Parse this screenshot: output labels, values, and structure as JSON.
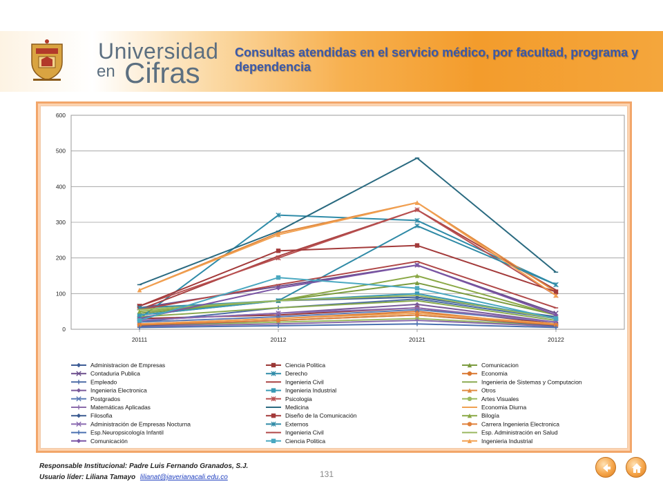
{
  "header": {
    "brand_line1": "Universidad",
    "brand_en": "en",
    "brand_line2": "Cifras",
    "title": "Consultas atendidas en el servicio médico, por facultad, programa y dependencia"
  },
  "colors": {
    "banner_accent": "#f39c2c",
    "title_color": "#3a58a8",
    "brand_color": "#5c6f80",
    "frame_border": "#f2a66a"
  },
  "footer": {
    "responsible": "Responsable Institucional: Padre Luis Fernando Granados, S.J.",
    "leader_label": "Usuario líder: Liliana Tamayo",
    "leader_email": "lilianat@javerianacali.edu.co",
    "page_number": "131"
  },
  "icons": {
    "back": "back-arrow-icon",
    "home": "home-icon"
  },
  "chart_data": {
    "type": "line",
    "title": "",
    "xlabel": "",
    "ylabel": "",
    "categories": [
      "20111",
      "20112",
      "20121",
      "20122"
    ],
    "ylim": [
      0,
      600
    ],
    "yticks": [
      0,
      100,
      200,
      300,
      400,
      500,
      600
    ],
    "grid": true,
    "legend_position": "bottom",
    "series": [
      {
        "name": "Administracion de Empresas",
        "color": "#3d5c95",
        "marker": "diamond",
        "values": [
          40,
          80,
          90,
          35
        ]
      },
      {
        "name": "Ciencia Politica",
        "color": "#9a3735",
        "marker": "square",
        "values": [
          30,
          40,
          60,
          15
        ]
      },
      {
        "name": "Comunicacion",
        "color": "#7a9a3e",
        "marker": "triangle",
        "values": [
          45,
          80,
          130,
          40
        ]
      },
      {
        "name": "Contaduria Publica",
        "color": "#6b4d8c",
        "marker": "x",
        "values": [
          60,
          120,
          180,
          45
        ]
      },
      {
        "name": "Derecho",
        "color": "#2e8ba8",
        "marker": "asterisk",
        "values": [
          30,
          320,
          305,
          125
        ]
      },
      {
        "name": "Economia",
        "color": "#d9762e",
        "marker": "circle",
        "values": [
          15,
          30,
          50,
          10
        ]
      },
      {
        "name": "Empleado",
        "color": "#4a6aa5",
        "marker": "plus",
        "values": [
          20,
          60,
          85,
          30
        ]
      },
      {
        "name": "Ingenieria Civil",
        "color": "#a84040",
        "marker": "dash",
        "values": [
          55,
          205,
          335,
          110
        ]
      },
      {
        "name": "Ingenieria de Sistemas y Computacion",
        "color": "#8aaa50",
        "marker": "dash",
        "values": [
          35,
          60,
          80,
          25
        ]
      },
      {
        "name": "Ingenieria Electronica",
        "color": "#7a5a9a",
        "marker": "diamond",
        "values": [
          25,
          45,
          70,
          20
        ]
      },
      {
        "name": "Ingenieria Industrial",
        "color": "#3a9ab5",
        "marker": "square",
        "values": [
          40,
          80,
          100,
          30
        ]
      },
      {
        "name": "Otros",
        "color": "#e08a40",
        "marker": "triangle",
        "values": [
          110,
          270,
          355,
          105
        ]
      },
      {
        "name": "Postgrados",
        "color": "#5a7ab5",
        "marker": "x",
        "values": [
          20,
          35,
          55,
          20
        ]
      },
      {
        "name": "Psicologia",
        "color": "#b85050",
        "marker": "asterisk",
        "values": [
          65,
          200,
          335,
          95
        ]
      },
      {
        "name": "Artes Visuales",
        "color": "#9aba60",
        "marker": "circle",
        "values": [
          10,
          20,
          30,
          10
        ]
      },
      {
        "name": "Matemáticas Aplicadas",
        "color": "#8a6aaa",
        "marker": "plus",
        "values": [
          8,
          15,
          25,
          8
        ]
      },
      {
        "name": "Medicina",
        "color": "#2a6a80",
        "marker": "dash",
        "values": [
          125,
          275,
          480,
          160
        ]
      },
      {
        "name": "Economia Diurna",
        "color": "#f0a050",
        "marker": "dash",
        "values": [
          15,
          30,
          45,
          15
        ]
      },
      {
        "name": "Filosofia",
        "color": "#3a5a90",
        "marker": "diamond",
        "values": [
          10,
          25,
          40,
          10
        ]
      },
      {
        "name": "Diseño de la Comunicación",
        "color": "#a33a3a",
        "marker": "square",
        "values": [
          65,
          220,
          235,
          105
        ]
      },
      {
        "name": "Bilogía",
        "color": "#8aa845",
        "marker": "triangle",
        "values": [
          50,
          80,
          150,
          40
        ]
      },
      {
        "name": "Administración de Empresas Nocturna",
        "color": "#8a6ab0",
        "marker": "x",
        "values": [
          25,
          45,
          60,
          20
        ]
      },
      {
        "name": "Externos",
        "color": "#2f8aa6",
        "marker": "asterisk",
        "values": [
          60,
          80,
          290,
          125
        ]
      },
      {
        "name": "Carrera Ingenieria Electronica",
        "color": "#e0803a",
        "marker": "circle",
        "values": [
          12,
          25,
          40,
          12
        ]
      },
      {
        "name": "Esp.Neuropsicología Infantil",
        "color": "#4a70b0",
        "marker": "plus",
        "values": [
          5,
          10,
          15,
          5
        ]
      },
      {
        "name": "Ingenieria Civil",
        "color": "#b04848",
        "marker": "dash",
        "values": [
          55,
          125,
          190,
          60
        ]
      },
      {
        "name": "Esp. Administración en Salud",
        "color": "#9ab860",
        "marker": "dash",
        "values": [
          55,
          80,
          95,
          30
        ]
      },
      {
        "name": "Comunicación",
        "color": "#7a55a5",
        "marker": "diamond",
        "values": [
          30,
          115,
          180,
          40
        ]
      },
      {
        "name": "Ciencia Politica",
        "color": "#4aa8c0",
        "marker": "square",
        "values": [
          25,
          145,
          115,
          30
        ]
      },
      {
        "name": "Ingenieria Industrial",
        "color": "#f2a050",
        "marker": "triangle",
        "values": [
          110,
          265,
          355,
          95
        ]
      }
    ]
  }
}
